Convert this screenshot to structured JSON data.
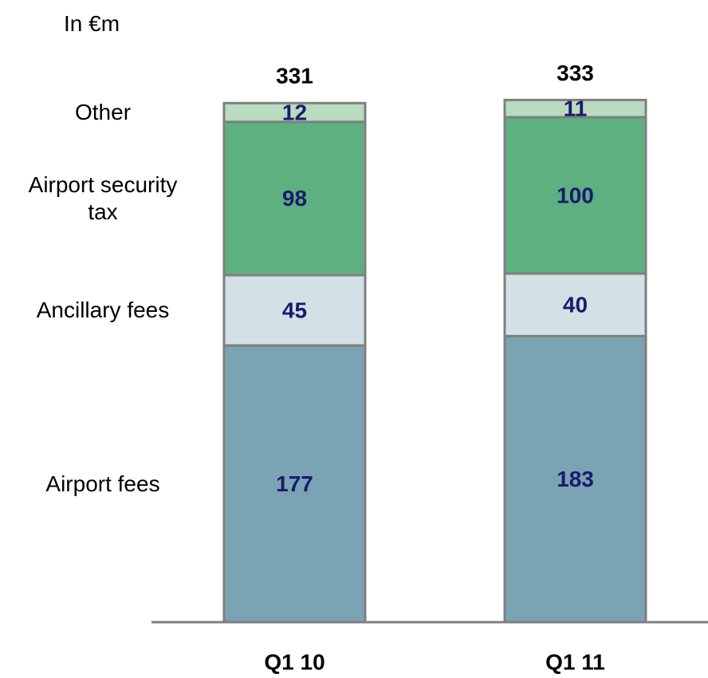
{
  "chart_data": {
    "type": "stacked_bar",
    "subtitle": "In €m",
    "categories": [
      "Q1 10",
      "Q1 11"
    ],
    "series": [
      {
        "name": "Airport fees",
        "color": "#7aa3b3",
        "values": [
          177,
          183
        ]
      },
      {
        "name": "Ancillary fees",
        "color": "#d3e0e6",
        "values": [
          45,
          40
        ]
      },
      {
        "name": "Airport security tax",
        "color": "#5db080",
        "values": [
          98,
          100
        ]
      },
      {
        "name": "Other",
        "color": "#b9dcc0",
        "values": [
          12,
          11
        ]
      }
    ],
    "totals": [
      331,
      333
    ]
  }
}
